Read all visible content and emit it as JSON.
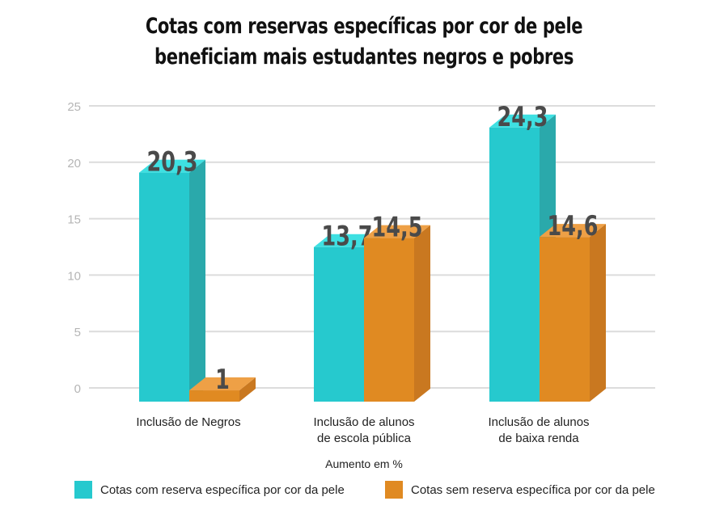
{
  "chart_data": {
    "type": "bar",
    "title": "Cotas com reservas específicas por cor de pele beneficiam mais estudantes negros e pobres",
    "title_lines": [
      "Cotas com reservas específicas por cor de pele",
      "beneficiam mais estudantes negros e pobres"
    ],
    "xlabel": "Aumento em %",
    "ylabel": "",
    "ylim": [
      0,
      25
    ],
    "yticks": [
      "0",
      "5",
      "10",
      "15",
      "20",
      "25"
    ],
    "grid": true,
    "legend_placement": "bottom",
    "categories": [
      [
        "Inclusão de Negros"
      ],
      [
        "Inclusão de alunos",
        "de escola pública"
      ],
      [
        "Inclusão de alunos",
        "de baixa renda"
      ]
    ],
    "series": [
      {
        "name": "Cotas com reserva específica por cor da pele",
        "values": [
          20.3,
          13.7,
          24.3
        ],
        "labels": [
          "20,3",
          "13,7",
          "24,3"
        ],
        "color": "#26c9ce"
      },
      {
        "name": "Cotas sem reserva específica por cor da pele",
        "values": [
          1,
          14.5,
          14.6
        ],
        "labels": [
          "1",
          "14,5",
          "14,6"
        ],
        "color": "#e08a22"
      }
    ]
  }
}
